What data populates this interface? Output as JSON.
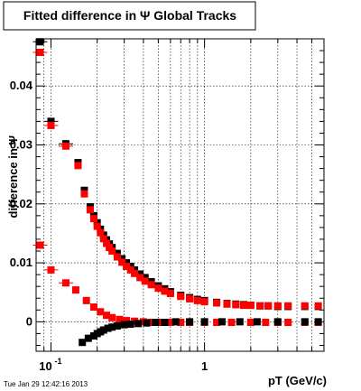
{
  "chart_data": {
    "type": "scatter",
    "title": "Fitted difference in Ψ  Global Tracks",
    "xlabel": "pT (GeV/c)",
    "ylabel": "difference in Ψ",
    "xscale": "log",
    "xlim": [
      0.08,
      6.0
    ],
    "ylim": [
      -0.005,
      0.048
    ],
    "grid": true,
    "x_ticks": [
      {
        "value": 0.1,
        "label": "10",
        "sup": "-1"
      },
      {
        "value": 1,
        "label": "1",
        "sup": ""
      }
    ],
    "y_ticks": [
      {
        "value": 0,
        "label": "0"
      },
      {
        "value": 0.01,
        "label": "0.01"
      },
      {
        "value": 0.02,
        "label": "0.02"
      },
      {
        "value": 0.03,
        "label": "0.03"
      },
      {
        "value": 0.04,
        "label": "0.04"
      }
    ],
    "series": [
      {
        "color": "#000000",
        "role": "upper",
        "x": [
          0.085,
          0.1,
          0.125,
          0.15,
          0.165,
          0.18,
          0.19,
          0.2,
          0.21,
          0.22,
          0.23,
          0.24,
          0.25,
          0.27,
          0.29,
          0.31,
          0.33,
          0.35,
          0.38,
          0.41,
          0.45,
          0.5,
          0.55,
          0.6,
          0.7,
          0.8,
          0.9,
          1.0,
          1.2,
          1.4,
          1.6,
          1.8,
          2.0,
          2.3,
          2.6,
          3.0,
          3.5,
          4.5,
          5.5
        ],
        "y": [
          0.0475,
          0.034,
          0.0302,
          0.027,
          0.0223,
          0.0195,
          0.018,
          0.0168,
          0.0157,
          0.0147,
          0.0139,
          0.0132,
          0.0126,
          0.0116,
          0.0107,
          0.01,
          0.0094,
          0.0088,
          0.0081,
          0.0075,
          0.0068,
          0.0061,
          0.0056,
          0.0051,
          0.0045,
          0.0041,
          0.0038,
          0.0036,
          0.0033,
          0.0031,
          0.003,
          0.0029,
          0.0028,
          0.0027,
          0.0027,
          0.0026,
          0.0026,
          0.0026,
          0.0026
        ]
      },
      {
        "color": "#ff0000",
        "role": "upper",
        "x": [
          0.085,
          0.1,
          0.125,
          0.15,
          0.165,
          0.18,
          0.19,
          0.2,
          0.21,
          0.22,
          0.23,
          0.24,
          0.25,
          0.27,
          0.29,
          0.31,
          0.33,
          0.35,
          0.38,
          0.41,
          0.45,
          0.5,
          0.55,
          0.6,
          0.7,
          0.8,
          0.9,
          1.0,
          1.2,
          1.4,
          1.6,
          1.8,
          2.0,
          2.3,
          2.6,
          3.0,
          3.5,
          4.5,
          5.5
        ],
        "y": [
          0.0457,
          0.0333,
          0.0298,
          0.0265,
          0.0217,
          0.019,
          0.0175,
          0.0162,
          0.0151,
          0.0141,
          0.0133,
          0.0126,
          0.012,
          0.011,
          0.0101,
          0.0094,
          0.0088,
          0.0082,
          0.0075,
          0.0069,
          0.0063,
          0.0057,
          0.0052,
          0.0048,
          0.0043,
          0.0039,
          0.0036,
          0.0034,
          0.0032,
          0.003,
          0.0029,
          0.0028,
          0.0028,
          0.0027,
          0.0027,
          0.0027,
          0.0027,
          0.0027,
          0.0027
        ]
      },
      {
        "color": "#ff0000",
        "role": "lower",
        "x": [
          0.085,
          0.1,
          0.125,
          0.145,
          0.17,
          0.19,
          0.21,
          0.23,
          0.25,
          0.28,
          0.31,
          0.35,
          0.4,
          0.45,
          0.5,
          0.6,
          0.7,
          0.8,
          1.0,
          1.2,
          1.5,
          2.0,
          2.5,
          3.0,
          3.5,
          4.5,
          5.5
        ],
        "y": [
          0.013,
          0.0088,
          0.0066,
          0.0054,
          0.0036,
          0.0025,
          0.0017,
          0.0011,
          0.0007,
          0.0004,
          0.0002,
          0.0001,
          0.0,
          -0.0001,
          -0.0001,
          -0.0001,
          -0.0001,
          -0.0001,
          -0.0001,
          -0.0001,
          -0.0001,
          -0.0001,
          -0.0001,
          -0.0001,
          -0.0001,
          -0.0001,
          -0.0001
        ]
      },
      {
        "color": "#000000",
        "role": "lower",
        "x": [
          0.16,
          0.175,
          0.19,
          0.2,
          0.21,
          0.22,
          0.235,
          0.25,
          0.27,
          0.3,
          0.33,
          0.37,
          0.42,
          0.48,
          0.55,
          0.65,
          0.8,
          1.0,
          1.3,
          1.7,
          2.2,
          3.0,
          4.5,
          5.5
        ],
        "y": [
          -0.0035,
          -0.0028,
          -0.0024,
          -0.002,
          -0.0017,
          -0.0014,
          -0.0011,
          -0.0009,
          -0.0007,
          -0.0005,
          -0.0004,
          -0.0003,
          -0.0002,
          -0.0001,
          -0.0001,
          0.0,
          0.0,
          0.0,
          0.0,
          0.0,
          0.0,
          0.0,
          0.0,
          0.0
        ]
      }
    ]
  },
  "footer": {
    "timestamp": "Tue Jan 29 12:42:16 2013"
  }
}
